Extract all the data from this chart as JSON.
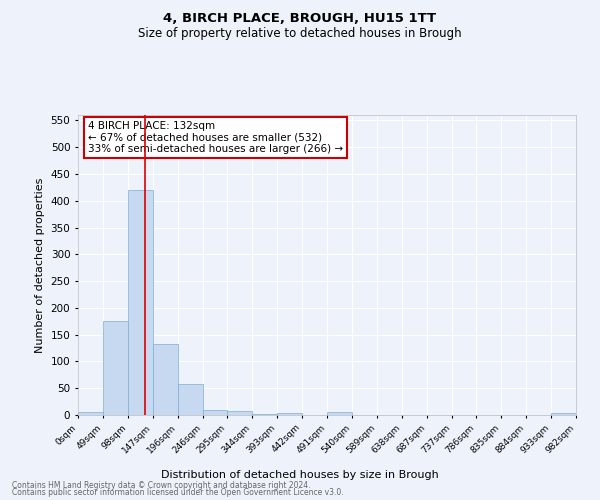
{
  "title1": "4, BIRCH PLACE, BROUGH, HU15 1TT",
  "title2": "Size of property relative to detached houses in Brough",
  "xlabel": "Distribution of detached houses by size in Brough",
  "ylabel": "Number of detached properties",
  "bin_labels": [
    "0sqm",
    "49sqm",
    "98sqm",
    "147sqm",
    "196sqm",
    "246sqm",
    "295sqm",
    "344sqm",
    "393sqm",
    "442sqm",
    "491sqm",
    "540sqm",
    "589sqm",
    "638sqm",
    "687sqm",
    "737sqm",
    "786sqm",
    "835sqm",
    "884sqm",
    "933sqm",
    "982sqm"
  ],
  "bar_values": [
    5,
    175,
    420,
    132,
    57,
    9,
    8,
    2,
    4,
    0,
    5,
    0,
    0,
    0,
    0,
    0,
    0,
    0,
    0,
    3
  ],
  "bar_color": "#c6d9f0",
  "bar_edge_color": "#7bafd4",
  "bg_color": "#eef2fa",
  "grid_color": "#ffffff",
  "vline_x_bar_index": 2.7,
  "vline_color": "#dd0000",
  "annotation_text": "4 BIRCH PLACE: 132sqm\n← 67% of detached houses are smaller (532)\n33% of semi-detached houses are larger (266) →",
  "annotation_box_color": "#cc0000",
  "ylim": [
    0,
    560
  ],
  "yticks": [
    0,
    50,
    100,
    150,
    200,
    250,
    300,
    350,
    400,
    450,
    500,
    550
  ],
  "footer1": "Contains HM Land Registry data © Crown copyright and database right 2024.",
  "footer2": "Contains public sector information licensed under the Open Government Licence v3.0."
}
